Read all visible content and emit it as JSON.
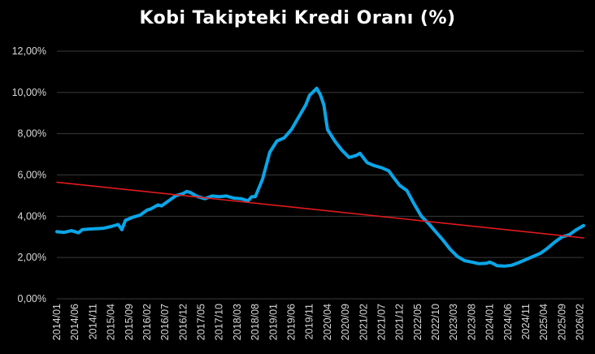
{
  "chart_data": {
    "type": "line",
    "title": "Kobi Takipteki Kredi Oranı (%)",
    "xlabel": "",
    "ylabel": "",
    "ylim": [
      0,
      12
    ],
    "y_ticks": [
      "0,00%",
      "2,00%",
      "4,00%",
      "6,00%",
      "8,00%",
      "10,00%",
      "12,00%"
    ],
    "x_ticks": [
      "2014/01",
      "2014/06",
      "2014/11",
      "2015/04",
      "2015/09",
      "2016/02",
      "2016/07",
      "2016/12",
      "2017/05",
      "2017/10",
      "2018/03",
      "2018/08",
      "2019/01",
      "2019/06",
      "2019/11",
      "2020/04",
      "2020/09",
      "2021/02",
      "2021/07",
      "2021/12",
      "2022/05",
      "2022/10",
      "2023/03",
      "2023/08",
      "2024/01",
      "2024/06",
      "2024/11",
      "2025/04",
      "2025/09",
      "2026/02"
    ],
    "grid": true,
    "series": [
      {
        "color": "#0aa6e8",
        "points": [
          [
            "2014/01",
            3.25
          ],
          [
            "2014/03",
            3.22
          ],
          [
            "2014/05",
            3.3
          ],
          [
            "2014/07",
            3.2
          ],
          [
            "2014/08",
            3.35
          ],
          [
            "2014/10",
            3.38
          ],
          [
            "2014/12",
            3.4
          ],
          [
            "2015/02",
            3.42
          ],
          [
            "2015/04",
            3.5
          ],
          [
            "2015/06",
            3.6
          ],
          [
            "2015/07",
            3.35
          ],
          [
            "2015/08",
            3.8
          ],
          [
            "2015/10",
            3.95
          ],
          [
            "2015/12",
            4.05
          ],
          [
            "2016/02",
            4.3
          ],
          [
            "2016/03",
            4.35
          ],
          [
            "2016/05",
            4.55
          ],
          [
            "2016/06",
            4.5
          ],
          [
            "2016/08",
            4.75
          ],
          [
            "2016/10",
            5.0
          ],
          [
            "2016/12",
            5.1
          ],
          [
            "2017/01",
            5.2
          ],
          [
            "2017/02",
            5.15
          ],
          [
            "2017/04",
            4.95
          ],
          [
            "2017/06",
            4.85
          ],
          [
            "2017/08",
            4.98
          ],
          [
            "2017/10",
            4.95
          ],
          [
            "2017/12",
            4.98
          ],
          [
            "2018/02",
            4.88
          ],
          [
            "2018/04",
            4.85
          ],
          [
            "2018/06",
            4.75
          ],
          [
            "2018/07",
            4.95
          ],
          [
            "2018/08",
            4.95
          ],
          [
            "2018/10",
            5.8
          ],
          [
            "2018/12",
            7.1
          ],
          [
            "2019/02",
            7.65
          ],
          [
            "2019/04",
            7.8
          ],
          [
            "2019/06",
            8.2
          ],
          [
            "2019/08",
            8.8
          ],
          [
            "2019/10",
            9.4
          ],
          [
            "2019/11",
            9.85
          ],
          [
            "2020/01",
            10.2
          ],
          [
            "2020/02",
            9.9
          ],
          [
            "2020/03",
            9.4
          ],
          [
            "2020/04",
            8.2
          ],
          [
            "2020/06",
            7.65
          ],
          [
            "2020/08",
            7.2
          ],
          [
            "2020/10",
            6.85
          ],
          [
            "2020/12",
            6.95
          ],
          [
            "2021/01",
            7.05
          ],
          [
            "2021/03",
            6.6
          ],
          [
            "2021/05",
            6.45
          ],
          [
            "2021/07",
            6.35
          ],
          [
            "2021/09",
            6.2
          ],
          [
            "2021/10",
            5.95
          ],
          [
            "2021/12",
            5.5
          ],
          [
            "2022/02",
            5.25
          ],
          [
            "2022/04",
            4.6
          ],
          [
            "2022/06",
            4.0
          ],
          [
            "2022/08",
            3.65
          ],
          [
            "2022/10",
            3.25
          ],
          [
            "2022/12",
            2.85
          ],
          [
            "2023/02",
            2.4
          ],
          [
            "2023/04",
            2.05
          ],
          [
            "2023/06",
            1.85
          ],
          [
            "2023/08",
            1.78
          ],
          [
            "2023/10",
            1.7
          ],
          [
            "2023/12",
            1.72
          ],
          [
            "2024/01",
            1.78
          ],
          [
            "2024/02",
            1.7
          ],
          [
            "2024/03",
            1.6
          ],
          [
            "2024/05",
            1.58
          ],
          [
            "2024/07",
            1.62
          ],
          [
            "2024/09",
            1.75
          ],
          [
            "2024/11",
            1.9
          ],
          [
            "2025/01",
            2.05
          ],
          [
            "2025/03",
            2.2
          ],
          [
            "2025/05",
            2.45
          ],
          [
            "2025/07",
            2.75
          ],
          [
            "2025/09",
            3.0
          ],
          [
            "2025/11",
            3.1
          ],
          [
            "2026/01",
            3.35
          ],
          [
            "2026/02",
            3.45
          ],
          [
            "2026/03",
            3.55
          ]
        ]
      },
      {
        "color": "#e31a1c",
        "points": [
          [
            "2014/01",
            5.65
          ],
          [
            "2026/03",
            2.95
          ]
        ]
      }
    ]
  }
}
